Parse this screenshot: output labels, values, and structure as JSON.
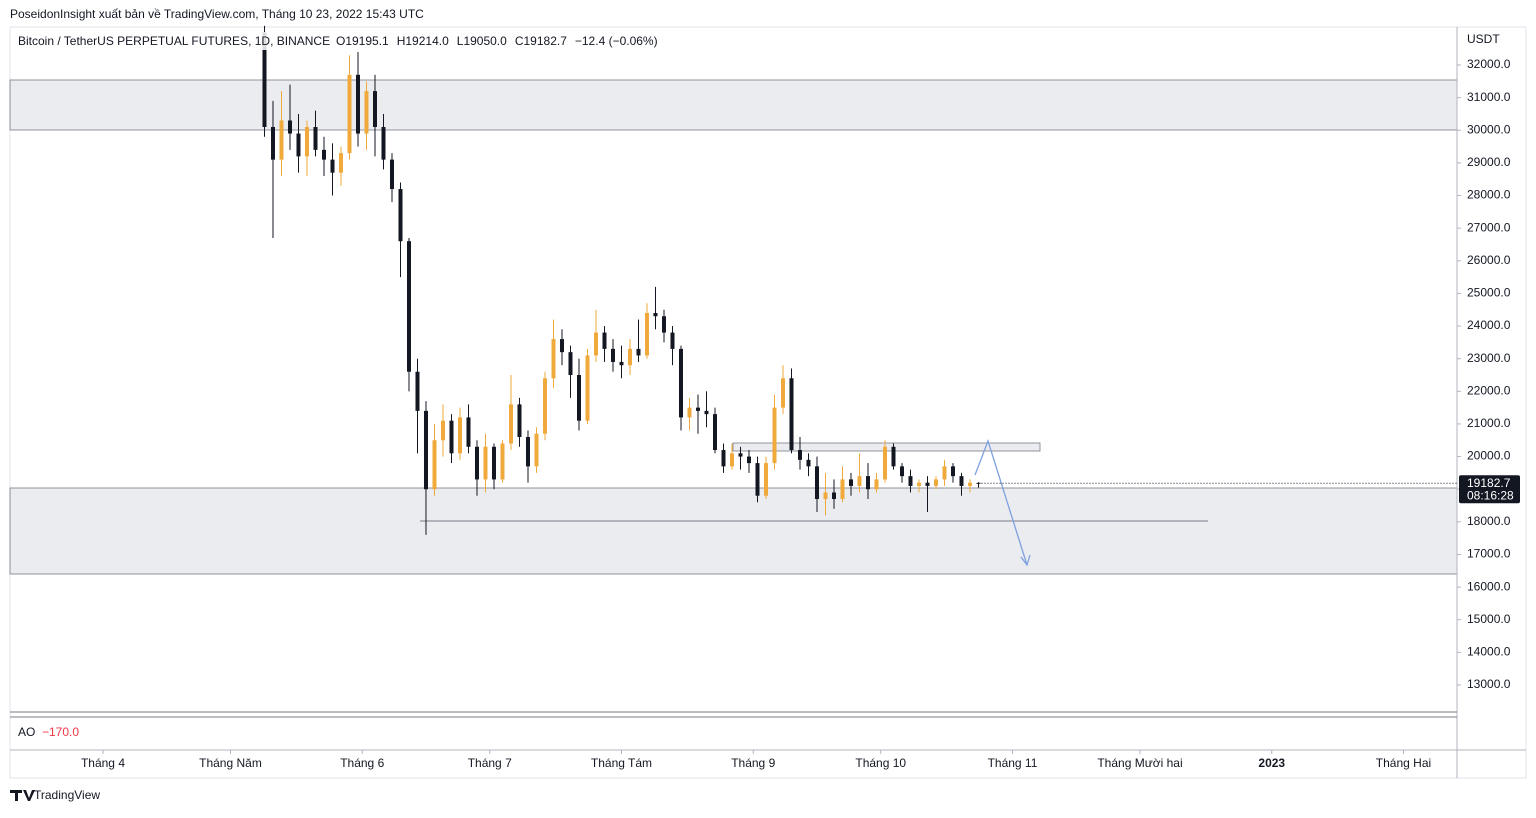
{
  "header": {
    "publisher": "PoseidonInsight xuất bản về TradingView.com, Tháng 10 23, 2022 15:43 UTC"
  },
  "chart_data": {
    "type": "candlestick",
    "title": "Bitcoin / TetherUS PERPETUAL FUTURES, 1D, BINANCE",
    "legend_values": [
      "O19195.1",
      "H19214.0",
      "L19050.0",
      "C19182.7",
      "−12.4 (−0.06%)"
    ],
    "y_unit": "USDT",
    "countdown": "08:16:28",
    "up_color": "#f0a93b",
    "down_color": "#131722",
    "x": [
      38,
      40,
      42,
      44,
      46,
      48,
      50,
      52,
      54,
      56,
      58,
      60,
      62,
      64,
      66,
      68,
      70,
      72,
      74,
      76,
      78,
      80,
      82,
      84,
      86,
      88,
      90,
      92,
      94,
      96,
      98,
      100,
      102,
      104,
      106,
      108,
      110,
      112,
      114,
      116,
      118,
      120,
      122,
      124,
      126,
      128,
      130,
      132,
      134,
      136,
      138,
      140,
      142,
      144,
      146,
      148,
      150,
      152,
      154,
      156,
      158,
      160,
      162,
      164,
      166,
      168,
      170,
      172,
      174,
      176,
      178,
      180,
      182,
      184,
      186,
      188,
      190,
      192,
      194,
      196,
      198,
      200,
      202,
      204,
      206
    ],
    "open": [
      33000,
      30100,
      29100,
      30300,
      29900,
      29200,
      30100,
      29400,
      29100,
      28700,
      29300,
      31700,
      29900,
      31200,
      30100,
      29100,
      28200,
      26600,
      22600,
      21400,
      19000,
      20500,
      21100,
      20100,
      21200,
      20300,
      19300,
      20300,
      19300,
      20400,
      21600,
      20600,
      19700,
      20700,
      22400,
      23600,
      23200,
      22500,
      21100,
      23100,
      23800,
      23300,
      22900,
      22800,
      23300,
      23100,
      24400,
      24300,
      23800,
      23300,
      21200,
      21500,
      21400,
      21300,
      20200,
      19700,
      20100,
      20000,
      19800,
      18800,
      19800,
      21500,
      22400,
      20200,
      19900,
      19700,
      18700,
      18900,
      18700,
      19300,
      19100,
      19400,
      19000,
      19300,
      20300,
      19700,
      19400,
      19100,
      19200,
      19100,
      19300,
      19700,
      19400,
      19100,
      19195.1
    ],
    "high": [
      33200,
      30900,
      31200,
      31400,
      30500,
      30300,
      30600,
      29800,
      29600,
      29500,
      32300,
      32400,
      31500,
      31700,
      30500,
      29300,
      28400,
      26700,
      23000,
      21700,
      21000,
      21600,
      21300,
      21500,
      21600,
      20500,
      20700,
      20400,
      20500,
      22500,
      21800,
      20800,
      20900,
      22600,
      24200,
      23900,
      23400,
      23000,
      23300,
      24500,
      24000,
      23600,
      23400,
      23600,
      24200,
      24700,
      25200,
      24500,
      24000,
      23400,
      21800,
      21900,
      22000,
      21500,
      20400,
      20400,
      20300,
      20200,
      20000,
      20000,
      21900,
      22800,
      22700,
      20600,
      20100,
      20000,
      19500,
      19300,
      19700,
      19500,
      20100,
      19800,
      19500,
      20500,
      20400,
      19800,
      19600,
      19300,
      19400,
      19400,
      19900,
      19800,
      19500,
      19300,
      19214.0
    ],
    "low": [
      29800,
      26700,
      28600,
      29400,
      28700,
      28600,
      29200,
      28600,
      28000,
      28300,
      29100,
      29500,
      29400,
      29200,
      28800,
      27800,
      25500,
      22000,
      20100,
      17600,
      18800,
      20000,
      19800,
      19900,
      20100,
      18800,
      18900,
      19000,
      19200,
      20200,
      20300,
      19200,
      19500,
      20500,
      22100,
      22800,
      21800,
      20800,
      21000,
      22900,
      22900,
      22600,
      22400,
      22500,
      22900,
      23000,
      23900,
      23500,
      22800,
      20800,
      20800,
      20700,
      20900,
      20100,
      19500,
      19600,
      19600,
      19500,
      18600,
      18700,
      19600,
      21300,
      20100,
      19600,
      19400,
      18300,
      18200,
      18400,
      18600,
      18800,
      18900,
      18700,
      18900,
      19200,
      19600,
      19200,
      18900,
      18900,
      18300,
      19000,
      19100,
      19200,
      18800,
      18900,
      19050.0
    ],
    "close": [
      30100,
      29100,
      30300,
      29900,
      29200,
      30100,
      29400,
      29100,
      28700,
      29300,
      31700,
      29900,
      31200,
      30100,
      29100,
      28200,
      26600,
      22600,
      21400,
      19000,
      20500,
      21100,
      20100,
      21200,
      20300,
      19300,
      20300,
      19300,
      20400,
      21600,
      20600,
      19700,
      20700,
      22400,
      23600,
      23200,
      22500,
      21100,
      23100,
      23800,
      23300,
      22900,
      22800,
      23300,
      23100,
      24400,
      24300,
      23800,
      23300,
      21200,
      21500,
      21400,
      21300,
      20200,
      19700,
      20100,
      20000,
      19800,
      18800,
      19800,
      21500,
      22400,
      20200,
      19900,
      19700,
      18700,
      18900,
      18700,
      19300,
      19100,
      19400,
      19000,
      19300,
      20300,
      19700,
      19400,
      19100,
      19200,
      19100,
      19300,
      19700,
      19400,
      19100,
      19200,
      19182.7
    ],
    "xlim": [
      -21.88,
      318.59
    ],
    "xticks": [
      {
        "value": 0,
        "label": "Tháng 4"
      },
      {
        "value": 30,
        "label": "Tháng Năm"
      },
      {
        "value": 61,
        "label": "Tháng 6"
      },
      {
        "value": 91,
        "label": "Tháng 7"
      },
      {
        "value": 122,
        "label": "Tháng Tám"
      },
      {
        "value": 153,
        "label": "Tháng 9"
      },
      {
        "value": 183,
        "label": "Tháng 10"
      },
      {
        "value": 214,
        "label": "Tháng 11"
      },
      {
        "value": 244,
        "label": "Tháng Mười hai"
      },
      {
        "value": 275,
        "label": "2023"
      },
      {
        "value": 306,
        "label": "Tháng Hai"
      }
    ],
    "ylim": [
      12172,
      33165
    ],
    "yticks": [
      {
        "value": 13000,
        "label": "13000.0"
      },
      {
        "value": 14000,
        "label": "14000.0"
      },
      {
        "value": 15000,
        "label": "15000.0"
      },
      {
        "value": 16000,
        "label": "16000.0"
      },
      {
        "value": 17000,
        "label": "17000.0"
      },
      {
        "value": 18000,
        "label": "18000.0"
      },
      {
        "value": 19000,
        "label": "19000.0"
      },
      {
        "value": 20000,
        "label": "20000.0"
      },
      {
        "value": 21000,
        "label": "21000.0"
      },
      {
        "value": 22000,
        "label": "22000.0"
      },
      {
        "value": 23000,
        "label": "23000.0"
      },
      {
        "value": 24000,
        "label": "24000.0"
      },
      {
        "value": 25000,
        "label": "25000.0"
      },
      {
        "value": 26000,
        "label": "26000.0"
      },
      {
        "value": 27000,
        "label": "27000.0"
      },
      {
        "value": 28000,
        "label": "28000.0"
      },
      {
        "value": 29000,
        "label": "29000.0"
      },
      {
        "value": 30000,
        "label": "30000.0"
      },
      {
        "value": 31000,
        "label": "31000.0"
      },
      {
        "value": 32000,
        "label": "32000.0"
      }
    ],
    "grid": false,
    "indicator": {
      "name": "AO",
      "value_label": "−170.0"
    }
  },
  "footer": {
    "brand": "TradingView"
  }
}
